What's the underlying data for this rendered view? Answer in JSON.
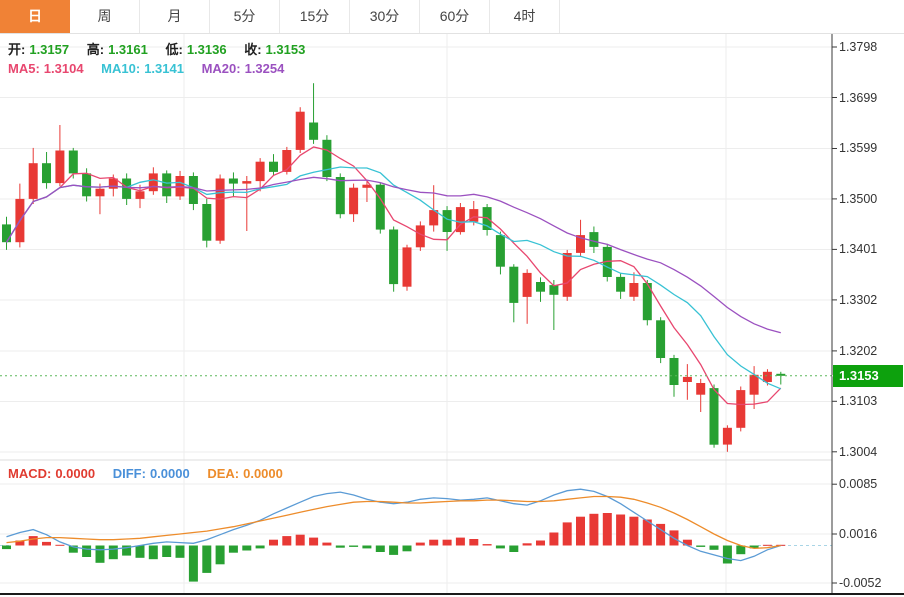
{
  "tabs": {
    "items": [
      {
        "label": "日",
        "active": true
      },
      {
        "label": "周",
        "active": false
      },
      {
        "label": "月",
        "active": false
      },
      {
        "label": "5分",
        "active": false
      },
      {
        "label": "15分",
        "active": false
      },
      {
        "label": "30分",
        "active": false
      },
      {
        "label": "60分",
        "active": false
      },
      {
        "label": "4时",
        "active": false
      }
    ]
  },
  "price_legend": {
    "open_label": "开:",
    "open": "1.3157",
    "high_label": "高:",
    "high": "1.3161",
    "low_label": "低:",
    "low": "1.3136",
    "close_label": "收:",
    "close": "1.3153"
  },
  "ma_legend": {
    "ma5_label": "MA5:",
    "ma5": "1.3104",
    "ma10_label": "MA10:",
    "ma10": "1.3141",
    "ma20_label": "MA20:",
    "ma20": "1.3254"
  },
  "macd_legend": {
    "macd_label": "MACD:",
    "macd": "0.0000",
    "diff_label": "DIFF:",
    "diff": "0.0000",
    "dea_label": "DEA:",
    "dea": "0.0000"
  },
  "price_axis": {
    "ticks": [
      "1.3798",
      "1.3699",
      "1.3599",
      "1.3500",
      "1.3401",
      "1.3302",
      "1.3202",
      "1.3103",
      "1.3004"
    ],
    "current_price": "1.3153"
  },
  "macd_axis": {
    "ticks": [
      "0.0085",
      "0.0016",
      "-0.0052"
    ]
  },
  "colors": {
    "up": "#e83935",
    "down": "#28a032",
    "ma5": "#e8476f",
    "ma10": "#38c2d4",
    "ma20": "#9b51c0",
    "diff_line": "#5b9bd5",
    "dea_line": "#ed8c2b",
    "tab_active_bg": "#f08236",
    "badge_bg": "#0da10d",
    "current_price_line": "#5cb85c",
    "grid": "#ededed",
    "axis": "#444444"
  },
  "chart_data": [
    {
      "type": "candlestick",
      "panel": "price",
      "title": "USD daily candlestick with MA5/MA10/MA20",
      "y_ticks": [
        1.3798,
        1.3699,
        1.3599,
        1.35,
        1.3401,
        1.3302,
        1.3202,
        1.3103,
        1.3004
      ],
      "ylim": [
        1.2955,
        1.3848
      ],
      "current_price": 1.3153,
      "ma_periods": [
        5,
        10,
        20
      ],
      "ohlc": [
        [
          1.345,
          1.3465,
          1.34,
          1.3415
        ],
        [
          1.3415,
          1.353,
          1.3405,
          1.35
        ],
        [
          1.35,
          1.36,
          1.349,
          1.357
        ],
        [
          1.357,
          1.3592,
          1.352,
          1.3531
        ],
        [
          1.3531,
          1.3645,
          1.3525,
          1.3595
        ],
        [
          1.3595,
          1.36,
          1.354,
          1.355
        ],
        [
          1.355,
          1.356,
          1.3495,
          1.3505
        ],
        [
          1.3505,
          1.353,
          1.347,
          1.352
        ],
        [
          1.352,
          1.3548,
          1.3505,
          1.354
        ],
        [
          1.354,
          1.355,
          1.3488,
          1.35
        ],
        [
          1.35,
          1.3528,
          1.3482,
          1.3515
        ],
        [
          1.3515,
          1.3562,
          1.3508,
          1.355
        ],
        [
          1.355,
          1.3556,
          1.3492,
          1.3505
        ],
        [
          1.3505,
          1.3555,
          1.3498,
          1.3545
        ],
        [
          1.3545,
          1.3552,
          1.3478,
          1.349
        ],
        [
          1.349,
          1.35,
          1.3405,
          1.3418
        ],
        [
          1.3418,
          1.3548,
          1.3412,
          1.354
        ],
        [
          1.354,
          1.3552,
          1.3505,
          1.353
        ],
        [
          1.353,
          1.3545,
          1.3437,
          1.3535
        ],
        [
          1.3535,
          1.358,
          1.3515,
          1.3573
        ],
        [
          1.3573,
          1.3588,
          1.3545,
          1.3553
        ],
        [
          1.3553,
          1.3602,
          1.3548,
          1.3596
        ],
        [
          1.3596,
          1.368,
          1.359,
          1.3671
        ],
        [
          1.365,
          1.3727,
          1.3608,
          1.3616
        ],
        [
          1.3616,
          1.3625,
          1.3535,
          1.3543
        ],
        [
          1.3543,
          1.355,
          1.3462,
          1.347
        ],
        [
          1.347,
          1.353,
          1.3455,
          1.3522
        ],
        [
          1.3522,
          1.3536,
          1.3494,
          1.3528
        ],
        [
          1.3528,
          1.3532,
          1.3432,
          1.344
        ],
        [
          1.344,
          1.3446,
          1.3318,
          1.3333
        ],
        [
          1.3328,
          1.341,
          1.332,
          1.3405
        ],
        [
          1.3405,
          1.3456,
          1.3398,
          1.3448
        ],
        [
          1.3448,
          1.3527,
          1.3436,
          1.3478
        ],
        [
          1.3478,
          1.3486,
          1.3398,
          1.3435
        ],
        [
          1.3435,
          1.3492,
          1.343,
          1.3484
        ],
        [
          1.3455,
          1.3496,
          1.3448,
          1.348
        ],
        [
          1.3484,
          1.349,
          1.3428,
          1.3439
        ],
        [
          1.3429,
          1.3436,
          1.3352,
          1.3367
        ],
        [
          1.3367,
          1.3372,
          1.3258,
          1.3296
        ],
        [
          1.3308,
          1.3362,
          1.3255,
          1.3355
        ],
        [
          1.3337,
          1.3346,
          1.3298,
          1.3318
        ],
        [
          1.3331,
          1.3341,
          1.3243,
          1.3312
        ],
        [
          1.3308,
          1.34,
          1.33,
          1.3394
        ],
        [
          1.3394,
          1.3459,
          1.3386,
          1.3429
        ],
        [
          1.3435,
          1.3446,
          1.3394,
          1.3406
        ],
        [
          1.3406,
          1.3412,
          1.3338,
          1.3347
        ],
        [
          1.3347,
          1.3354,
          1.3304,
          1.3318
        ],
        [
          1.3308,
          1.3356,
          1.33,
          1.3335
        ],
        [
          1.3335,
          1.3341,
          1.3252,
          1.3262
        ],
        [
          1.3262,
          1.3268,
          1.3178,
          1.3188
        ],
        [
          1.3188,
          1.3194,
          1.3112,
          1.3135
        ],
        [
          1.3141,
          1.3176,
          1.3106,
          1.3151
        ],
        [
          1.3116,
          1.3147,
          1.3082,
          1.3139
        ],
        [
          1.3129,
          1.3136,
          1.3012,
          1.3018
        ],
        [
          1.3018,
          1.3056,
          1.3004,
          1.3051
        ],
        [
          1.3051,
          1.3132,
          1.3044,
          1.3125
        ],
        [
          1.3116,
          1.3172,
          1.3088,
          1.3155
        ],
        [
          1.3141,
          1.3166,
          1.3134,
          1.3161
        ],
        [
          1.3157,
          1.3161,
          1.3136,
          1.3153
        ]
      ]
    },
    {
      "type": "bar",
      "panel": "macd",
      "title": "MACD(DIFF/DEA/histogram)",
      "y_ticks": [
        0.0085,
        0.0016,
        -0.0052
      ],
      "hist": [
        -0.0005,
        0.0007,
        0.0013,
        0.0005,
        0.0001,
        -0.001,
        -0.0016,
        -0.0024,
        -0.0019,
        -0.0014,
        -0.0017,
        -0.0019,
        -0.0016,
        -0.0017,
        -0.005,
        -0.0038,
        -0.0026,
        -0.001,
        -0.0007,
        -0.0004,
        0.0008,
        0.0013,
        0.0015,
        0.0011,
        0.0004,
        -0.0003,
        -0.0002,
        -0.0004,
        -0.0009,
        -0.0013,
        -0.0008,
        0.0004,
        0.0008,
        0.0008,
        0.0011,
        0.0009,
        0.0002,
        -0.0004,
        -0.0009,
        0.0003,
        0.0007,
        0.0018,
        0.0032,
        0.004,
        0.0044,
        0.0045,
        0.0043,
        0.004,
        0.0036,
        0.003,
        0.0021,
        0.0008,
        -0.0002,
        -0.0006,
        -0.0025,
        -0.0012,
        -0.0004,
        0.0001,
        0.0001
      ],
      "diff": [
        0.0012,
        0.0018,
        0.0022,
        0.0015,
        0.0005,
        -0.0002,
        -0.0005,
        -0.0006,
        -0.0005,
        -0.0003,
        0.0,
        0.0003,
        0.0005,
        0.0004,
        0.0003,
        0.0008,
        0.0015,
        0.0022,
        0.0028,
        0.0035,
        0.0044,
        0.0052,
        0.006,
        0.0068,
        0.0072,
        0.0074,
        0.007,
        0.0064,
        0.006,
        0.0058,
        0.006,
        0.0064,
        0.0066,
        0.0065,
        0.0063,
        0.0064,
        0.0066,
        0.0062,
        0.0058,
        0.0056,
        0.0062,
        0.007,
        0.0076,
        0.0078,
        0.0075,
        0.0068,
        0.0058,
        0.0046,
        0.0034,
        0.0022,
        0.001,
        0.0,
        -0.0008,
        -0.0013,
        -0.0018,
        -0.0021,
        -0.0015,
        -0.0006,
        0.0
      ],
      "dea": [
        0.0004,
        0.0006,
        0.0009,
        0.0011,
        0.0011,
        0.001,
        0.0009,
        0.0008,
        0.0008,
        0.0009,
        0.001,
        0.0012,
        0.0014,
        0.0016,
        0.0018,
        0.002,
        0.0023,
        0.0026,
        0.003,
        0.0034,
        0.0038,
        0.0042,
        0.0046,
        0.005,
        0.0054,
        0.0057,
        0.006,
        0.0061,
        0.0061,
        0.006,
        0.0059,
        0.0059,
        0.006,
        0.0061,
        0.0062,
        0.0062,
        0.0063,
        0.0063,
        0.0062,
        0.0061,
        0.0061,
        0.0062,
        0.0064,
        0.0066,
        0.0068,
        0.0068,
        0.0067,
        0.0064,
        0.0059,
        0.0053,
        0.0045,
        0.0036,
        0.0026,
        0.0016,
        0.0007,
        0.0,
        -0.0004,
        -0.0003,
        0.0
      ]
    }
  ]
}
